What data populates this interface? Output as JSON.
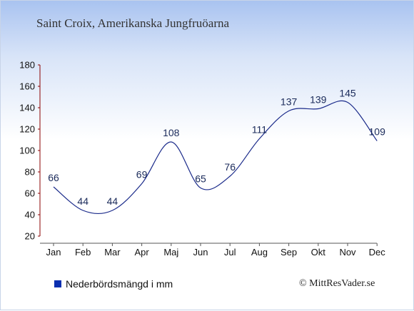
{
  "title": "Saint Croix, Amerikanska Jungfruöarna",
  "legend": {
    "label": "Nederbördsmängd i mm",
    "color": "#0a2fb0"
  },
  "credit": "© MittResVader.se",
  "chart_data": {
    "type": "line",
    "title": "Saint Croix, Amerikanska Jungfruöarna",
    "xlabel": "",
    "ylabel": "",
    "categories": [
      "Jan",
      "Feb",
      "Mar",
      "Apr",
      "Maj",
      "Jun",
      "Jul",
      "Aug",
      "Sep",
      "Okt",
      "Nov",
      "Dec"
    ],
    "series": [
      {
        "name": "Nederbördsmängd i mm",
        "values": [
          66,
          44,
          44,
          69,
          108,
          65,
          76,
          111,
          137,
          139,
          145,
          109
        ],
        "color": "#1a2a8a"
      }
    ],
    "ylim": [
      20,
      180
    ],
    "yticks": [
      20,
      40,
      60,
      80,
      100,
      120,
      140,
      160,
      180
    ],
    "grid": false,
    "legend_position": "bottom-left"
  }
}
